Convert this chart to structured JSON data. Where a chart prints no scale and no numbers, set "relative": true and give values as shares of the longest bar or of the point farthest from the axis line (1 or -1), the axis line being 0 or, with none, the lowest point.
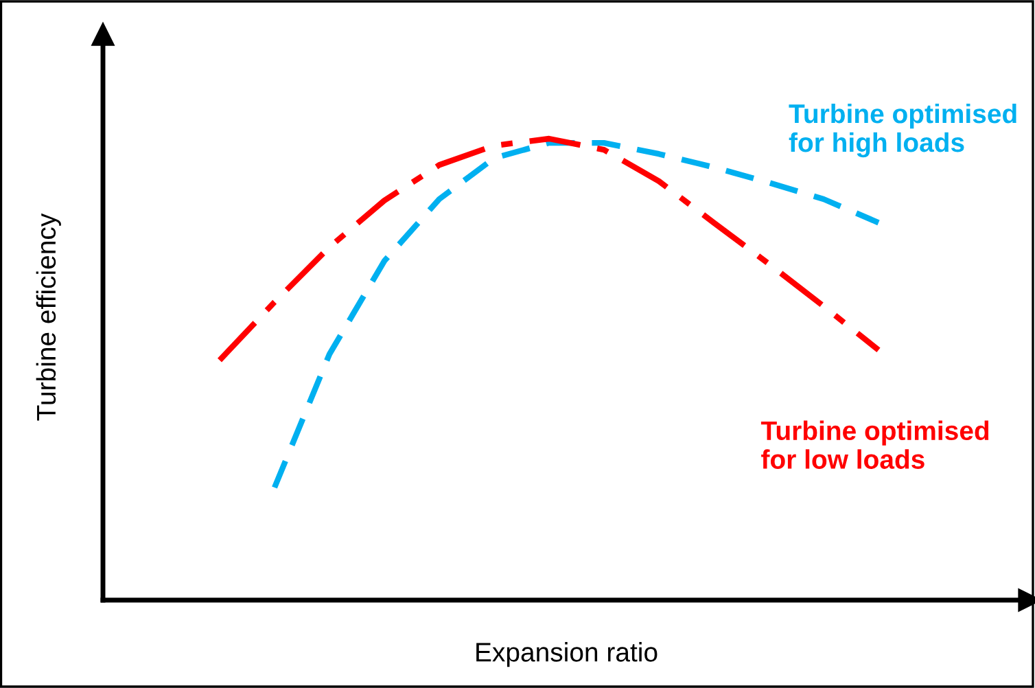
{
  "chart_data": {
    "type": "line",
    "relative": true,
    "xlabel": "Expansion ratio",
    "ylabel": "Turbine efficiency",
    "legend": false,
    "tick_labels": false,
    "categories": [
      null,
      null,
      null,
      null,
      null,
      null,
      null,
      null,
      null,
      null,
      null,
      null,
      null
    ],
    "series": [
      {
        "name": "Turbine optimised\nfor high loads",
        "color": "#00b0f0",
        "line_style": "dashed",
        "values": [
          null,
          0.244,
          0.533,
          0.735,
          0.869,
          0.958,
          0.991,
          0.991,
          0.967,
          0.938,
          0.905,
          0.869,
          0.818
        ]
      },
      {
        "name": "Turbine optimised\nfor low loads",
        "color": "#ff0000",
        "line_style": "dashdot",
        "values": [
          0.52,
          0.646,
          0.765,
          0.866,
          0.943,
          0.985,
          1.0,
          0.976,
          0.908,
          0.818,
          0.729,
          0.637,
          0.542
        ]
      }
    ]
  }
}
